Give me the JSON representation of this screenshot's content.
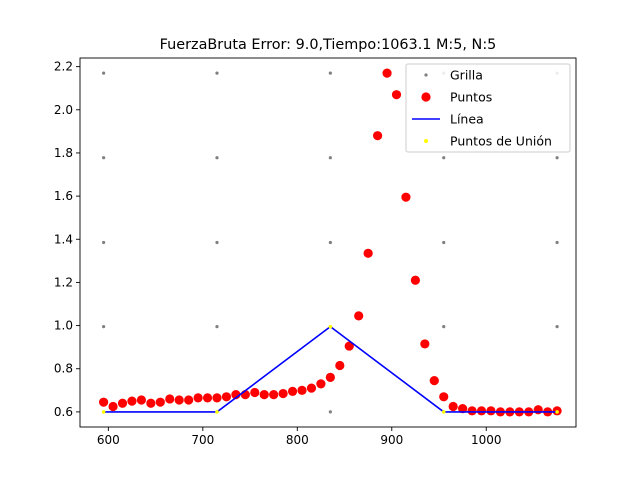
{
  "chart_data": {
    "type": "scatter",
    "title": "FuerzaBruta Error: 9.0,Tiempo:1063.1  M:5, N:5",
    "xlabel": "",
    "ylabel": "",
    "xlim": [
      570,
      1095
    ],
    "ylim": [
      0.53,
      2.24
    ],
    "xticks": [
      600,
      700,
      800,
      900,
      1000
    ],
    "yticks": [
      0.6,
      0.8,
      1.0,
      1.2,
      1.4,
      1.6,
      1.8,
      2.0,
      2.2
    ],
    "grid": false,
    "legend_position": "top-right",
    "series": [
      {
        "name": "Grilla",
        "kind": "scatter",
        "color": "#808080",
        "points": [
          [
            595,
            0.6
          ],
          [
            595,
            0.995
          ],
          [
            595,
            1.385
          ],
          [
            595,
            1.778
          ],
          [
            595,
            2.17
          ],
          [
            715,
            0.6
          ],
          [
            715,
            0.995
          ],
          [
            715,
            1.385
          ],
          [
            715,
            1.778
          ],
          [
            715,
            2.17
          ],
          [
            835,
            0.6
          ],
          [
            835,
            0.995
          ],
          [
            835,
            1.385
          ],
          [
            835,
            1.778
          ],
          [
            835,
            2.17
          ],
          [
            955,
            0.6
          ],
          [
            955,
            0.995
          ],
          [
            955,
            1.385
          ],
          [
            955,
            1.778
          ],
          [
            955,
            2.17
          ],
          [
            1075,
            0.6
          ],
          [
            1075,
            0.995
          ],
          [
            1075,
            1.385
          ],
          [
            1075,
            1.778
          ],
          [
            1075,
            2.17
          ]
        ]
      },
      {
        "name": "Puntos",
        "kind": "scatter",
        "color": "#ff0000",
        "points": [
          [
            595,
            0.645
          ],
          [
            605,
            0.625
          ],
          [
            615,
            0.64
          ],
          [
            625,
            0.65
          ],
          [
            635,
            0.655
          ],
          [
            645,
            0.64
          ],
          [
            655,
            0.645
          ],
          [
            665,
            0.66
          ],
          [
            675,
            0.655
          ],
          [
            685,
            0.655
          ],
          [
            695,
            0.665
          ],
          [
            705,
            0.665
          ],
          [
            715,
            0.665
          ],
          [
            725,
            0.67
          ],
          [
            735,
            0.68
          ],
          [
            745,
            0.68
          ],
          [
            755,
            0.69
          ],
          [
            765,
            0.68
          ],
          [
            775,
            0.68
          ],
          [
            785,
            0.685
          ],
          [
            795,
            0.695
          ],
          [
            805,
            0.7
          ],
          [
            815,
            0.71
          ],
          [
            825,
            0.73
          ],
          [
            835,
            0.76
          ],
          [
            845,
            0.815
          ],
          [
            855,
            0.905
          ],
          [
            865,
            1.045
          ],
          [
            875,
            1.335
          ],
          [
            885,
            1.88
          ],
          [
            895,
            2.17
          ],
          [
            905,
            2.07
          ],
          [
            915,
            1.595
          ],
          [
            925,
            1.21
          ],
          [
            935,
            0.915
          ],
          [
            945,
            0.745
          ],
          [
            955,
            0.67
          ],
          [
            965,
            0.625
          ],
          [
            975,
            0.615
          ],
          [
            985,
            0.605
          ],
          [
            995,
            0.605
          ],
          [
            1005,
            0.605
          ],
          [
            1015,
            0.6
          ],
          [
            1025,
            0.6
          ],
          [
            1035,
            0.6
          ],
          [
            1045,
            0.6
          ],
          [
            1055,
            0.61
          ],
          [
            1065,
            0.6
          ],
          [
            1075,
            0.605
          ]
        ]
      },
      {
        "name": "Línea",
        "kind": "line",
        "color": "#0000ff",
        "points": [
          [
            595,
            0.6
          ],
          [
            715,
            0.6
          ],
          [
            835,
            0.995
          ],
          [
            955,
            0.6
          ],
          [
            1075,
            0.6
          ]
        ]
      },
      {
        "name": "Puntos de Unión",
        "kind": "scatter",
        "color": "#ffff00",
        "points": [
          [
            595,
            0.6
          ],
          [
            715,
            0.6
          ],
          [
            835,
            0.995
          ],
          [
            955,
            0.6
          ],
          [
            1075,
            0.6
          ]
        ]
      }
    ]
  }
}
